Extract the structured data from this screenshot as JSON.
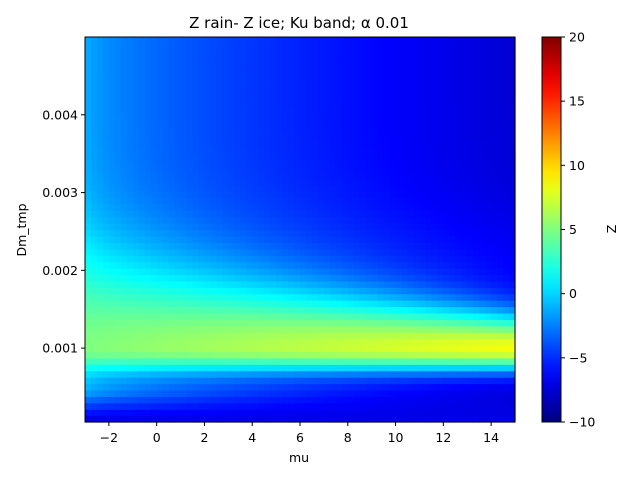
{
  "chart_data": {
    "type": "heatmap",
    "title": "Z rain- Z ice; Ku band; α 0.01",
    "xlabel": "mu",
    "ylabel": "Dm_tmp",
    "xlim": [
      -3,
      15
    ],
    "ylim": [
      5e-05,
      0.005
    ],
    "x_ticks": [
      -2,
      0,
      2,
      4,
      6,
      8,
      10,
      12,
      14
    ],
    "x_tick_labels": [
      "−2",
      "0",
      "2",
      "4",
      "6",
      "8",
      "10",
      "12",
      "14"
    ],
    "y_ticks": [
      0.001,
      0.002,
      0.003,
      0.004
    ],
    "y_tick_labels": [
      "0.001",
      "0.002",
      "0.003",
      "0.004"
    ],
    "grid": false,
    "colormap": "jet",
    "colorbar": {
      "label": "Z",
      "range": [
        -10,
        20
      ],
      "ticks": [
        -10,
        -5,
        0,
        5,
        10,
        15,
        20
      ],
      "tick_labels": [
        "−10",
        "−5",
        "0",
        "5",
        "10",
        "15",
        "20"
      ]
    },
    "grid_shape": {
      "nx": 72,
      "ny": 60
    },
    "approx_values": {
      "peak_value": 8.5,
      "peak_location": {
        "mu": 11,
        "Dm_tmp": 0.001
      },
      "bottom_band_value": -7,
      "top_right_value": -7.5,
      "top_left_value": 0
    }
  }
}
